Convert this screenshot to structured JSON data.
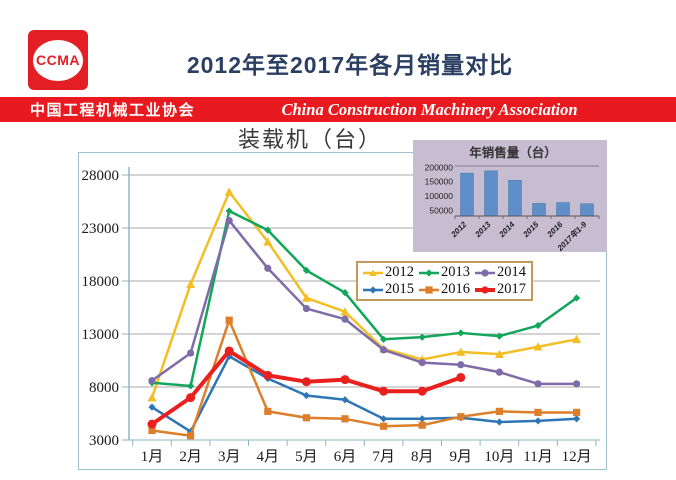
{
  "header": {
    "logo_text": "CCMA",
    "title": "2012年至2017年各月销量对比"
  },
  "banner": {
    "left": "中国工程机械工业协会",
    "right": "China Construction Machinery Association",
    "background_color": "#E8191F"
  },
  "colors": {
    "title_navy": "#2B3F63",
    "logo_red": "#E31E24",
    "axis": "#8FB6C6",
    "gridline": "#A9A9A9",
    "chart_border": "#9CC2D0",
    "legend_border": "#C49A5C",
    "inset_background": "#C6BDD1",
    "inset_bar": "#5E8FC9"
  },
  "chart_data": [
    {
      "type": "line",
      "title": "装载机（台）",
      "categories": [
        "1月",
        "2月",
        "3月",
        "4月",
        "5月",
        "6月",
        "7月",
        "8月",
        "9月",
        "10月",
        "11月",
        "12月"
      ],
      "ylim": [
        3000,
        28000
      ],
      "y_ticks": [
        3000,
        8000,
        13000,
        18000,
        23000,
        28000
      ],
      "grid": true,
      "legend_position": "inside-top-right",
      "series": [
        {
          "name": "2012",
          "color": "#F2BE24",
          "marker": "triangle",
          "width": 2.5,
          "values": [
            7000,
            17700,
            26400,
            21700,
            16400,
            15100,
            11600,
            10600,
            11300,
            11100,
            11800,
            12500
          ]
        },
        {
          "name": "2013",
          "color": "#11A65A",
          "marker": "diamond",
          "width": 2.5,
          "values": [
            8400,
            8100,
            24600,
            22800,
            19000,
            16900,
            12500,
            12700,
            13100,
            12800,
            13800,
            16400
          ]
        },
        {
          "name": "2014",
          "color": "#7E6BA8",
          "marker": "circle",
          "width": 2.5,
          "values": [
            8600,
            11200,
            23700,
            19200,
            15400,
            14400,
            11500,
            10300,
            10100,
            9400,
            8300,
            8300
          ]
        },
        {
          "name": "2015",
          "color": "#2E75B6",
          "marker": "diamond",
          "width": 2.5,
          "values": [
            6100,
            3800,
            10900,
            8800,
            7200,
            6800,
            5000,
            5000,
            5100,
            4700,
            4800,
            5000
          ]
        },
        {
          "name": "2016",
          "color": "#DD7E2B",
          "marker": "square",
          "width": 2.5,
          "values": [
            3900,
            3400,
            14300,
            5700,
            5100,
            5000,
            4300,
            4400,
            5200,
            5700,
            5600,
            5600
          ]
        },
        {
          "name": "2017",
          "color": "#E8201E",
          "marker": "circle",
          "width": 4,
          "values": [
            4500,
            7000,
            11400,
            9100,
            8500,
            8700,
            7600,
            7600,
            8900
          ]
        }
      ]
    },
    {
      "type": "bar",
      "title": "年销售量（台）",
      "categories": [
        "2012",
        "2013",
        "2014",
        "2015",
        "2016",
        "2017年1-9"
      ],
      "values": [
        180000,
        188000,
        155000,
        74000,
        77000,
        73000
      ],
      "ylim": [
        30000,
        205000
      ],
      "y_ticks": [
        50000,
        100000,
        150000,
        200000
      ],
      "xlabel": "",
      "ylabel": "",
      "legend_position": "none",
      "grid": false
    }
  ]
}
